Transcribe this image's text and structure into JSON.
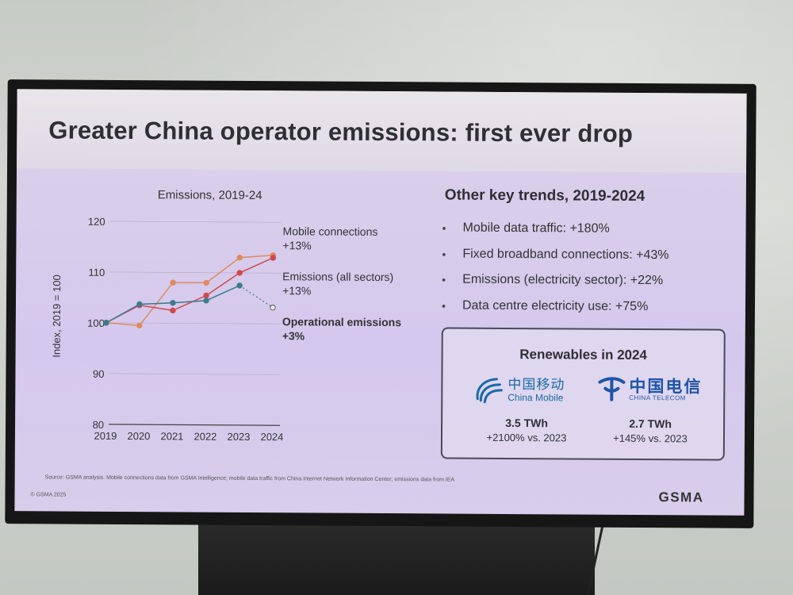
{
  "slide": {
    "title": "Greater China operator emissions: first ever drop",
    "source": "Source: GSMA analysis. Mobile connections data from GSMA Intelligence; mobile data traffic from China Internet Network Information Center; emissions data from IEA",
    "copyright": "© GSMA 2025",
    "brand": "GSMA"
  },
  "chart_data": {
    "type": "line",
    "title": "Emissions, 2019-24",
    "ylabel": "Index, 2019 = 100",
    "xlabel": "",
    "x": [
      "2019",
      "2020",
      "2021",
      "2022",
      "2023",
      "2024"
    ],
    "ylim": [
      80,
      120
    ],
    "yticks": [
      "120",
      "110",
      "100",
      "90",
      "80"
    ],
    "grid": true,
    "series": [
      {
        "name": "Mobile connections",
        "change": "+13%",
        "color": "#e08a5e",
        "values": [
          100,
          99.5,
          108,
          108,
          113,
          113.5
        ]
      },
      {
        "name": "Emissions (all sectors)",
        "change": "+13%",
        "color": "#d0484e",
        "values": [
          100,
          103.5,
          102.5,
          105.5,
          110,
          113
        ]
      },
      {
        "name": "Operational emissions",
        "change": "+3%",
        "color": "#3d7a8a",
        "values": [
          100,
          103.7,
          104,
          104.5,
          107.5,
          103.2
        ]
      }
    ]
  },
  "trends": {
    "title": "Other key trends, 2019-2024",
    "bullet": "•",
    "items": [
      "Mobile data traffic: +180%",
      "Fixed broadband connections: +43%",
      "Emissions (electricity sector): +22%",
      "Data centre electricity use: +75%"
    ]
  },
  "renewables": {
    "title": "Renewables in 2024",
    "china_mobile": {
      "name_cn": "中国移动",
      "name_en": "China Mobile",
      "value": "3.5 TWh",
      "change": "+2100% vs. 2023",
      "color": "#1a6aa8"
    },
    "china_telecom": {
      "name_cn": "中国电信",
      "name_en": "CHINA TELECOM",
      "value": "2.7 TWh",
      "change": "+145% vs. 2023",
      "color": "#1f55a8"
    }
  }
}
